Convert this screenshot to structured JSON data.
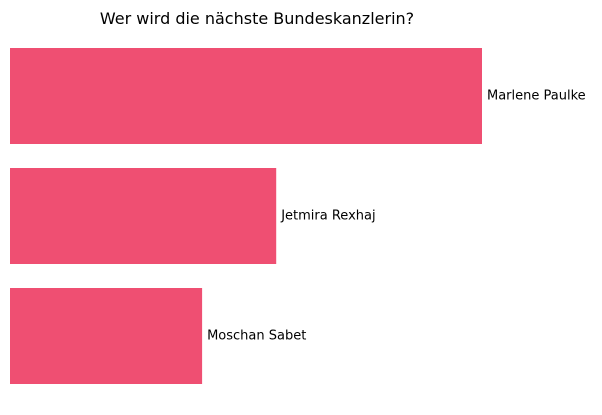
{
  "chart_data": {
    "type": "bar",
    "orientation": "horizontal",
    "title": "Wer wird die nächste Bundeskanzlerin?",
    "xlabel": "",
    "ylabel": "",
    "categories": [
      "Marlene Paulke",
      "Jetmira Rexhaj",
      "Moschan Sabet"
    ],
    "values": [
      100,
      56.4,
      40.7
    ],
    "xlim": [
      0,
      100
    ],
    "axes_visible": false,
    "grid": false,
    "legend": "none",
    "bar_color": "#ef4f72"
  }
}
